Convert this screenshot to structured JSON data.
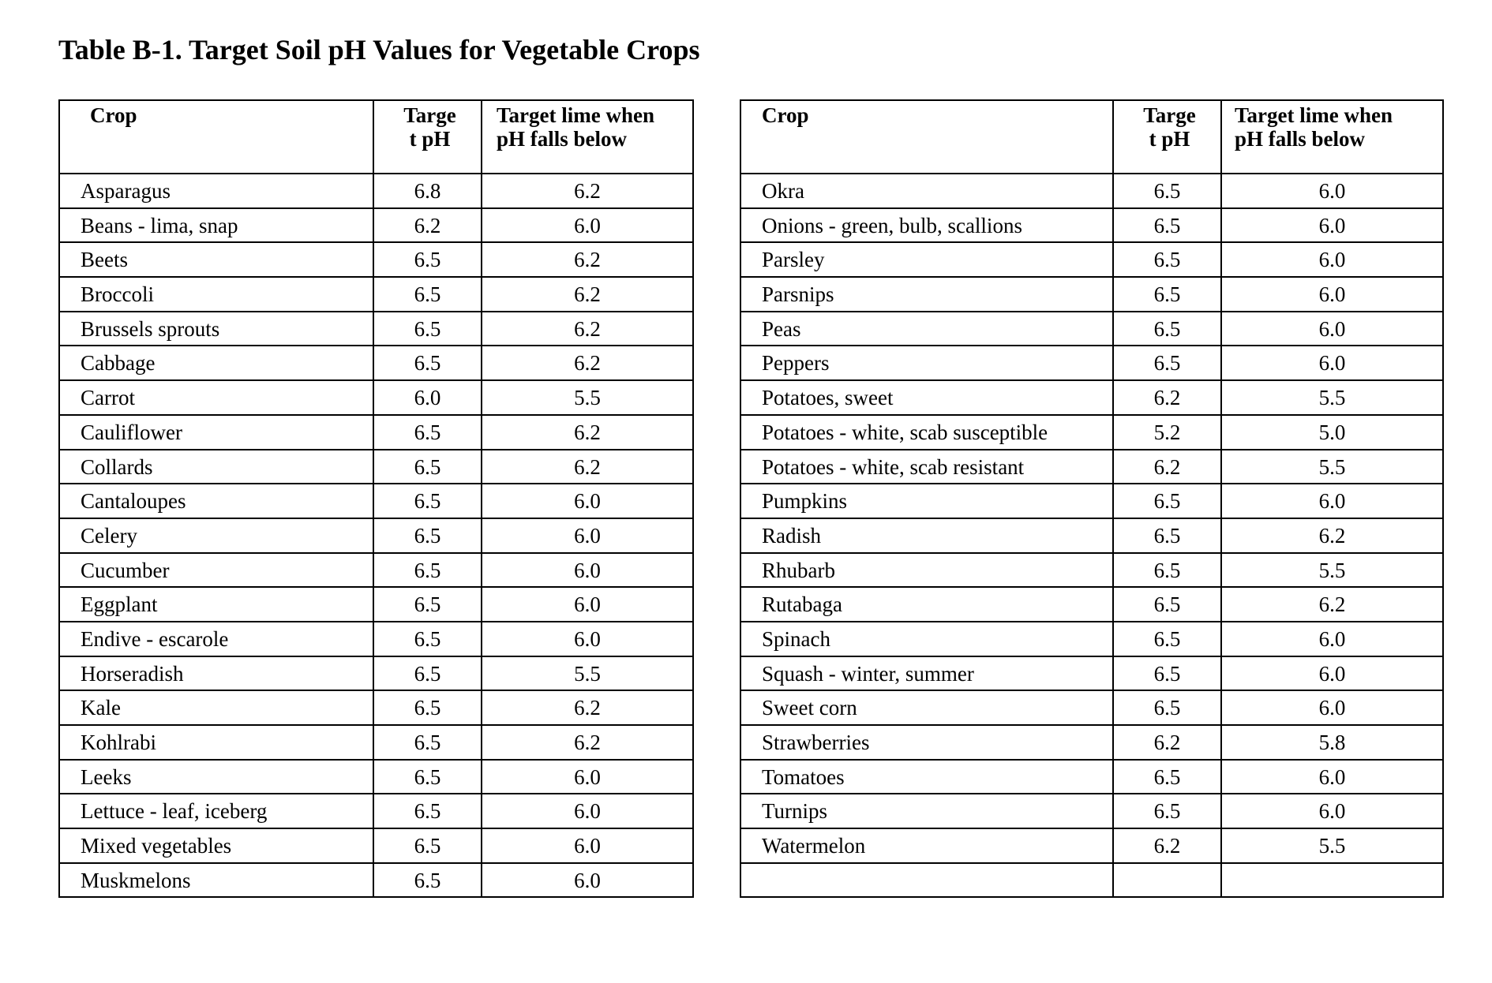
{
  "title": "Table B-1. Target Soil pH Values for Vegetable Crops",
  "headers": [
    "Crop",
    "Targe t pH",
    "Target lime when pH falls below"
  ],
  "left_rows": [
    [
      "Asparagus",
      "6.8",
      "6.2"
    ],
    [
      "Beans - lima, snap",
      "6.2",
      "6.0"
    ],
    [
      "Beets",
      "6.5",
      "6.2"
    ],
    [
      "Broccoli",
      "6.5",
      "6.2"
    ],
    [
      "Brussels sprouts",
      "6.5",
      "6.2"
    ],
    [
      "Cabbage",
      "6.5",
      "6.2"
    ],
    [
      "Carrot",
      "6.0",
      "5.5"
    ],
    [
      "Cauliflower",
      "6.5",
      "6.2"
    ],
    [
      "Collards",
      "6.5",
      "6.2"
    ],
    [
      "Cantaloupes",
      "6.5",
      "6.0"
    ],
    [
      "Celery",
      "6.5",
      "6.0"
    ],
    [
      "Cucumber",
      "6.5",
      "6.0"
    ],
    [
      "Eggplant",
      "6.5",
      "6.0"
    ],
    [
      "Endive - escarole",
      "6.5",
      "6.0"
    ],
    [
      "Horseradish",
      "6.5",
      "5.5"
    ],
    [
      "Kale",
      "6.5",
      "6.2"
    ],
    [
      "Kohlrabi",
      "6.5",
      "6.2"
    ],
    [
      "Leeks",
      "6.5",
      "6.0"
    ],
    [
      "Lettuce - leaf, iceberg",
      "6.5",
      "6.0"
    ],
    [
      "Mixed vegetables",
      "6.5",
      "6.0"
    ],
    [
      "Muskmelons",
      "6.5",
      "6.0"
    ]
  ],
  "right_rows": [
    [
      "Okra",
      "6.5",
      "6.0"
    ],
    [
      "Onions - green, bulb, scallions",
      "6.5",
      "6.0"
    ],
    [
      "Parsley",
      "6.5",
      "6.0"
    ],
    [
      "Parsnips",
      "6.5",
      "6.0"
    ],
    [
      "Peas",
      "6.5",
      "6.0"
    ],
    [
      "Peppers",
      "6.5",
      "6.0"
    ],
    [
      "Potatoes, sweet",
      "6.2",
      "5.5"
    ],
    [
      "Potatoes - white, scab susceptible",
      "5.2",
      "5.0"
    ],
    [
      "Potatoes - white, scab resistant",
      "6.2",
      "5.5"
    ],
    [
      "Pumpkins",
      "6.5",
      "6.0"
    ],
    [
      "Radish",
      "6.5",
      "6.2"
    ],
    [
      "Rhubarb",
      "6.5",
      "5.5"
    ],
    [
      "Rutabaga",
      "6.5",
      "6.2"
    ],
    [
      "Spinach",
      "6.5",
      "6.0"
    ],
    [
      "Squash - winter, summer",
      "6.5",
      "6.0"
    ],
    [
      "Sweet corn",
      "6.5",
      "6.0"
    ],
    [
      "Strawberries",
      "6.2",
      "5.8"
    ],
    [
      "Tomatoes",
      "6.5",
      "6.0"
    ],
    [
      "Turnips",
      "6.5",
      "6.0"
    ],
    [
      "Watermelon",
      "6.2",
      "5.5"
    ],
    [
      "",
      "",
      ""
    ]
  ]
}
